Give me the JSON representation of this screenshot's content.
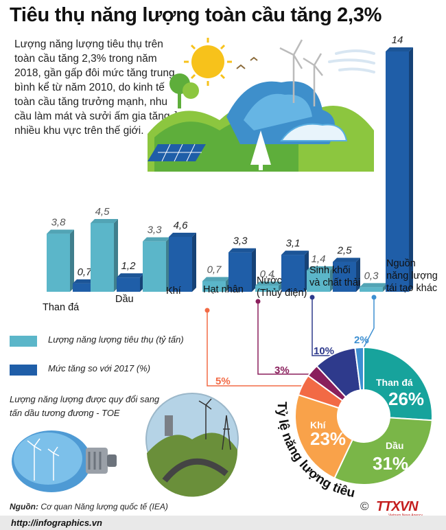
{
  "title": "Tiêu thụ năng lượng toàn cầu tăng 2,3%",
  "intro": "Lượng năng lượng tiêu thụ trên toàn cầu tăng 2,3% trong năm 2018, gần gấp đôi mức tăng trung bình kể từ năm 2010, do kinh tế toàn cầu tăng trưởng mạnh, nhu cầu làm mát và sưởi ấm gia tăng ở nhiều khu vực trên thế giới.",
  "legend": {
    "consumption": "Lượng năng lượng tiêu thụ (tỷ tấn)",
    "growth": "Mức tăng so với 2017 (%)"
  },
  "toe_note": "Lượng năng lượng được quy đổi sang tấn dầu tương đương - TOE",
  "source_label": "Nguồn:",
  "source_text": "Cơ quan Năng lượng quốc tế (IEA)",
  "footer_url": "http://infographics.vn",
  "logo_text": "TTXVN",
  "logo_sub": "Vietnam News Agency",
  "copyright": "©",
  "colors": {
    "consumption": "#5bb6c9",
    "growth": "#1f5ea8",
    "coal": "#17a39c",
    "oil": "#7ab648",
    "gas": "#f9a24a",
    "nuclear": "#f26a45",
    "hydro": "#8a1f5c",
    "biomass": "#2e3a8c",
    "renewable": "#3d8fd1"
  },
  "chart_data": [
    {
      "type": "bar",
      "categories": [
        "Than đá",
        "Dầu",
        "Khí",
        "Hạt nhân",
        "Nước (Thủy điện)",
        "Sinh khối và chất thải",
        "Nguồn năng lượng tái tạo khác"
      ],
      "series": [
        {
          "name": "Lượng năng lượng tiêu thụ (tỷ tấn)",
          "values": [
            3.8,
            4.5,
            3.3,
            0.7,
            0.4,
            1.4,
            0.3
          ],
          "labels": [
            "3,8",
            "4,5",
            "3,3",
            "0,7",
            "0,4",
            "1,4",
            "0,3"
          ]
        },
        {
          "name": "Mức tăng so với 2017 (%)",
          "values": [
            0.7,
            1.2,
            4.6,
            3.3,
            3.1,
            2.5,
            14
          ],
          "labels": [
            "0,7",
            "1,2",
            "4,6",
            "3,3",
            "3,1",
            "2,5",
            "14"
          ]
        }
      ]
    },
    {
      "type": "pie",
      "title": "Tỷ lệ năng lượng tiêu thụ",
      "slices": [
        {
          "label": "Than đá",
          "value": 26,
          "text": "26%"
        },
        {
          "label": "Dầu",
          "value": 31,
          "text": "31%"
        },
        {
          "label": "Khí",
          "value": 23,
          "text": "23%"
        },
        {
          "label": "Hạt nhân",
          "value": 5,
          "text": "5%"
        },
        {
          "label": "Nước (Thủy điện)",
          "value": 3,
          "text": "3%"
        },
        {
          "label": "Sinh khối và chất thải",
          "value": 10,
          "text": "10%"
        },
        {
          "label": "Nguồn năng lượng tái tạo khác",
          "value": 2,
          "text": "2%"
        }
      ]
    }
  ]
}
